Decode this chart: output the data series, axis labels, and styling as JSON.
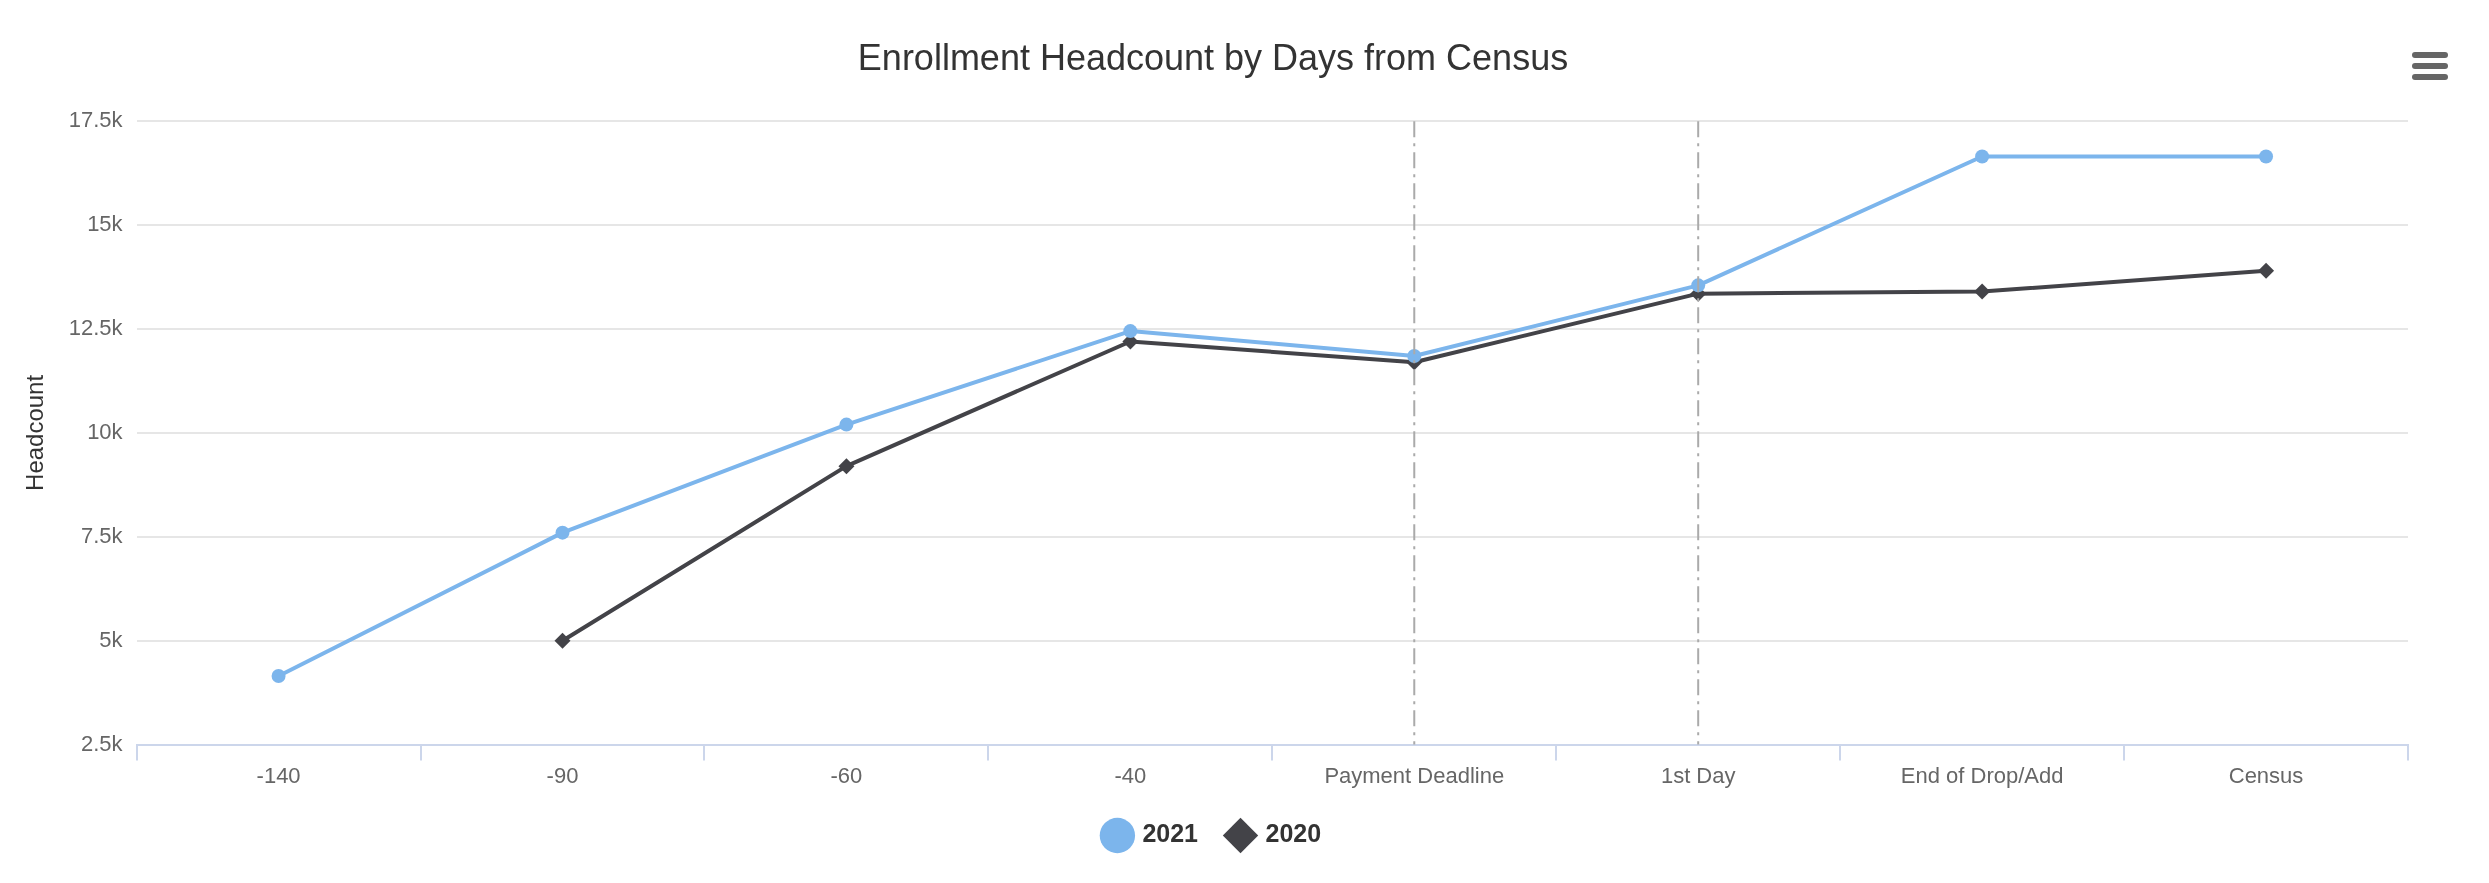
{
  "chart_data": {
    "type": "line",
    "title": "Enrollment Headcount by Days from Census",
    "ylabel": "Headcount",
    "categories": [
      "-140",
      "-90",
      "-60",
      "-40",
      "Payment Deadline",
      "1st Day",
      "End of Drop/Add",
      "Census"
    ],
    "series": [
      {
        "name": "2021",
        "color": "#7cb5ec",
        "marker": "circle",
        "values": [
          4150,
          7600,
          10200,
          12450,
          11850,
          13550,
          16650,
          16650
        ]
      },
      {
        "name": "2020",
        "color": "#434348",
        "marker": "diamond",
        "values": [
          null,
          5000,
          9200,
          12200,
          11700,
          13350,
          13400,
          13900
        ]
      }
    ],
    "ylim": [
      2500,
      17500
    ],
    "yticks": [
      {
        "value": 2500,
        "label": "2.5k"
      },
      {
        "value": 5000,
        "label": "5k"
      },
      {
        "value": 7500,
        "label": "7.5k"
      },
      {
        "value": 10000,
        "label": "10k"
      },
      {
        "value": 12500,
        "label": "12.5k"
      },
      {
        "value": 15000,
        "label": "15k"
      },
      {
        "value": 17500,
        "label": "17.5k"
      }
    ],
    "grid": "y",
    "legend": "bottom",
    "ref_lines": [
      {
        "axis": "x",
        "value": "Payment Deadline",
        "color": "#aaaaaa",
        "line_style": "dashdot"
      },
      {
        "axis": "x",
        "value": "1st Day",
        "color": "#aaaaaa",
        "line_style": "dashdot"
      }
    ]
  }
}
